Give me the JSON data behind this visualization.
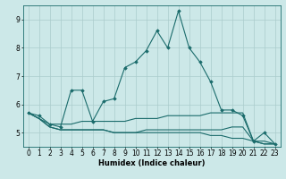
{
  "xlabel": "Humidex (Indice chaleur)",
  "ylabel": "",
  "background_color": "#cce8e8",
  "line_color": "#1a6b6b",
  "grid_color": "#aacccc",
  "x": [
    0,
    1,
    2,
    3,
    4,
    5,
    6,
    7,
    8,
    9,
    10,
    11,
    12,
    13,
    14,
    15,
    16,
    17,
    18,
    19,
    20,
    21,
    22,
    23
  ],
  "series": [
    [
      5.7,
      5.6,
      5.3,
      5.2,
      6.5,
      6.5,
      5.4,
      6.1,
      6.2,
      7.3,
      7.5,
      7.9,
      8.6,
      8.0,
      9.3,
      8.0,
      7.5,
      6.8,
      5.8,
      5.8,
      5.6,
      4.7,
      5.0,
      4.6
    ],
    [
      5.7,
      5.5,
      5.3,
      5.3,
      5.3,
      5.4,
      5.4,
      5.4,
      5.4,
      5.4,
      5.5,
      5.5,
      5.5,
      5.6,
      5.6,
      5.6,
      5.6,
      5.7,
      5.7,
      5.7,
      5.7,
      4.7,
      4.7,
      4.6
    ],
    [
      5.7,
      5.5,
      5.2,
      5.1,
      5.1,
      5.1,
      5.1,
      5.1,
      5.0,
      5.0,
      5.0,
      5.0,
      5.0,
      5.0,
      5.0,
      5.0,
      5.0,
      4.9,
      4.9,
      4.8,
      4.8,
      4.7,
      4.6,
      4.6
    ],
    [
      5.7,
      5.5,
      5.2,
      5.1,
      5.1,
      5.1,
      5.1,
      5.1,
      5.0,
      5.0,
      5.0,
      5.1,
      5.1,
      5.1,
      5.1,
      5.1,
      5.1,
      5.1,
      5.1,
      5.2,
      5.2,
      4.7,
      4.6,
      4.6
    ]
  ],
  "ylim": [
    4.5,
    9.5
  ],
  "xlim": [
    -0.5,
    23.5
  ],
  "yticks": [
    5,
    6,
    7,
    8,
    9
  ],
  "xticks": [
    0,
    1,
    2,
    3,
    4,
    5,
    6,
    7,
    8,
    9,
    10,
    11,
    12,
    13,
    14,
    15,
    16,
    17,
    18,
    19,
    20,
    21,
    22,
    23
  ],
  "marker": "D",
  "markersize": 1.8,
  "linewidth": 0.8,
  "axis_fontsize": 6,
  "tick_fontsize": 5.5
}
